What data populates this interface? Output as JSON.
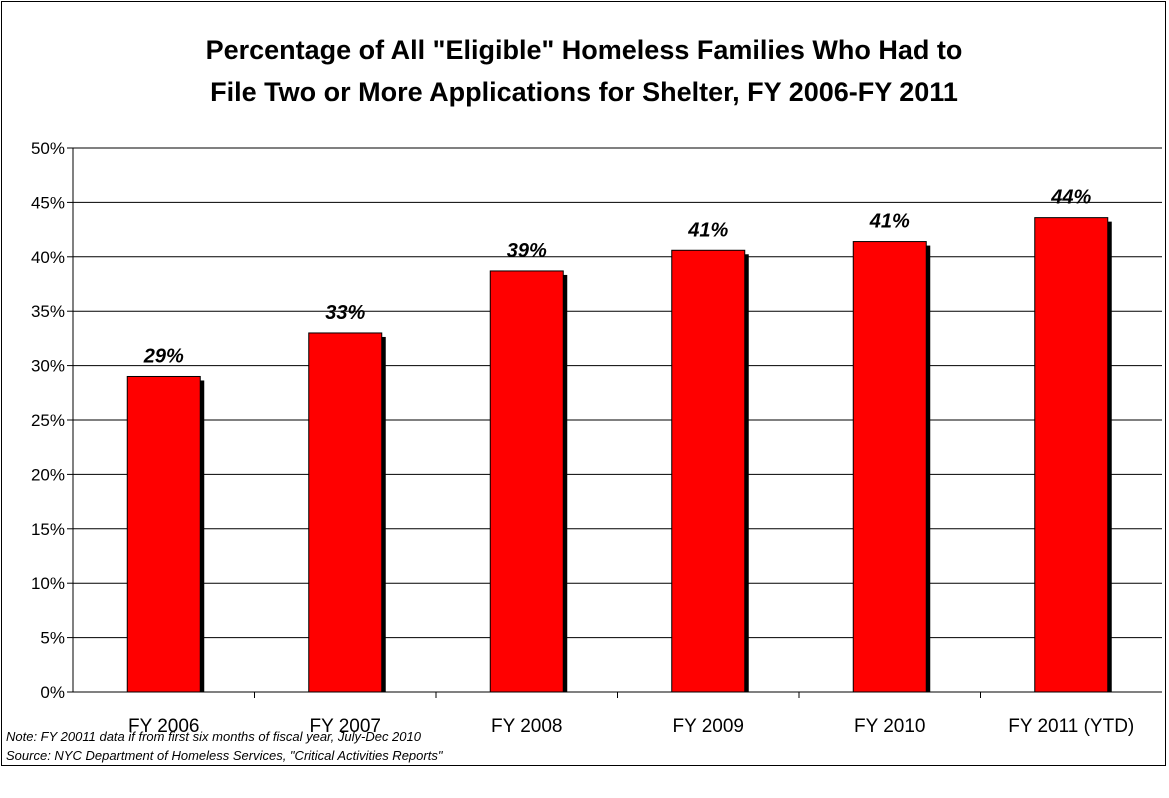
{
  "chart_data": {
    "type": "bar",
    "title": "Percentage of All \"Eligible\" Homeless Families Who Had to File Two or More Applications for Shelter, FY 2006-FY 2011",
    "title_lines": [
      "Percentage of All \"Eligible\" Homeless Families Who Had to",
      "File Two or More Applications for Shelter, FY 2006-FY 2011"
    ],
    "categories": [
      "FY 2006",
      "FY 2007",
      "FY 2008",
      "FY 2009",
      "FY 2010",
      "FY 2011 (YTD)"
    ],
    "values": [
      29,
      33,
      38.7,
      40.6,
      41.4,
      43.6
    ],
    "data_labels": [
      "29%",
      "33%",
      "39%",
      "41%",
      "41%",
      "44%"
    ],
    "yticks": [
      "0%",
      "5%",
      "10%",
      "15%",
      "20%",
      "25%",
      "30%",
      "35%",
      "40%",
      "45%",
      "50%"
    ],
    "ylim": [
      0,
      50
    ],
    "xlabel": "",
    "ylabel": "",
    "grid": true,
    "legend": "none",
    "bar_color": "#ff0000",
    "shadow_color": "#000000"
  },
  "footnotes": {
    "note": "Note:  FY 20011 data if from first six months of fiscal year, July-Dec 2010",
    "source": "Source:  NYC Department of Homeless Services, \"Critical Activities Reports\""
  }
}
